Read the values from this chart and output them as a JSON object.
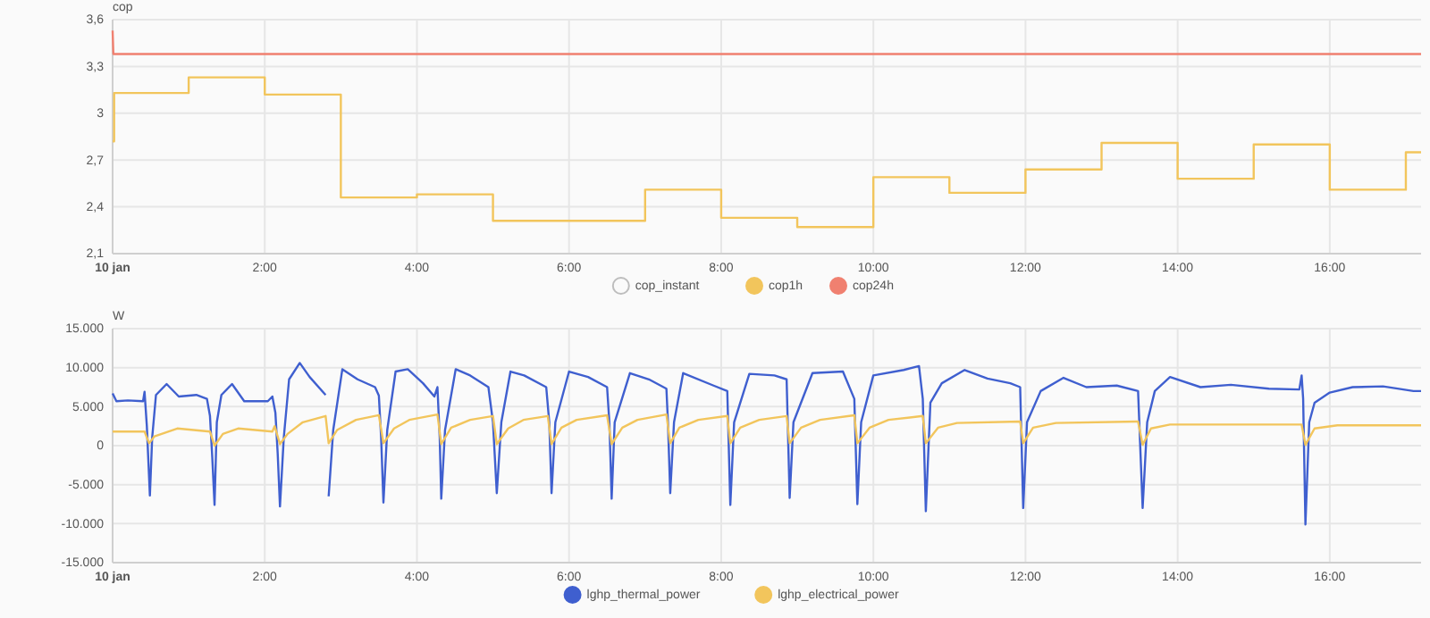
{
  "chart_data": [
    {
      "type": "step",
      "ylabel": "cop",
      "xlim": [
        0,
        17.2
      ],
      "ylim": [
        2.1,
        3.6
      ],
      "xticks": [
        {
          "value": 0,
          "label": "10 jan"
        },
        {
          "value": 2,
          "label": "2:00"
        },
        {
          "value": 4,
          "label": "4:00"
        },
        {
          "value": 6,
          "label": "6:00"
        },
        {
          "value": 8,
          "label": "8:00"
        },
        {
          "value": 10,
          "label": "10:00"
        },
        {
          "value": 12,
          "label": "12:00"
        },
        {
          "value": 14,
          "label": "14:00"
        },
        {
          "value": 16,
          "label": "16:00"
        }
      ],
      "yticks": [
        {
          "value": 2.1,
          "label": "2,1"
        },
        {
          "value": 2.4,
          "label": "2,4"
        },
        {
          "value": 2.7,
          "label": "2,7"
        },
        3,
        {
          "value": 3.3,
          "label": "3,3"
        },
        {
          "value": 3.6,
          "label": "3,6"
        }
      ],
      "grid": true,
      "legend": "bottom",
      "series": [
        {
          "name": "cop_instant",
          "color": "#bdbdbd"
        },
        {
          "name": "cop1h",
          "color": "#f2c55c",
          "x": [
            0,
            0.02,
            1,
            2,
            3,
            4,
            5,
            7,
            8,
            9,
            10,
            11,
            12,
            13,
            14,
            15,
            16,
            17,
            17.2
          ],
          "values": [
            2.82,
            3.13,
            3.23,
            3.12,
            2.46,
            2.48,
            2.31,
            2.51,
            2.33,
            2.27,
            2.59,
            2.49,
            2.64,
            2.81,
            2.58,
            2.8,
            2.51,
            2.75,
            2.75
          ]
        },
        {
          "name": "cop24h",
          "type": "line",
          "color": "#f08070",
          "x": [
            0,
            0.01,
            17.2
          ],
          "values": [
            3.53,
            3.38,
            3.38
          ]
        }
      ]
    },
    {
      "type": "line",
      "ylabel": "W",
      "xlim": [
        0,
        17.2
      ],
      "ylim": [
        -15000,
        15000
      ],
      "xticks": [
        {
          "value": 0,
          "label": "10 jan"
        },
        {
          "value": 2,
          "label": "2:00"
        },
        {
          "value": 4,
          "label": "4:00"
        },
        {
          "value": 6,
          "label": "6:00"
        },
        {
          "value": 8,
          "label": "8:00"
        },
        {
          "value": 10,
          "label": "10:00"
        },
        {
          "value": 12,
          "label": "12:00"
        },
        {
          "value": 14,
          "label": "14:00"
        },
        {
          "value": 16,
          "label": "16:00"
        }
      ],
      "yticks": [
        {
          "value": -15000,
          "label": "-15.000"
        },
        {
          "value": -10000,
          "label": "-10.000"
        },
        {
          "value": -5000,
          "label": "-5.000"
        },
        0,
        {
          "value": 5000,
          "label": "5.000"
        },
        {
          "value": 10000,
          "label": "10.000"
        },
        {
          "value": 15000,
          "label": "15.000"
        }
      ],
      "grid": true,
      "legend": "bottom",
      "series": [
        {
          "name": "lghp_thermal_power",
          "color": "#3f5fcf",
          "x": [
            0,
            0.05,
            0.2,
            0.4,
            0.42,
            0.45,
            0.49,
            0.52,
            0.57,
            0.71,
            0.87,
            1.1,
            1.24,
            1.28,
            1.31,
            1.34,
            1.37,
            1.43,
            1.57,
            1.73,
            2.04,
            2.1,
            2.14,
            2.17,
            2.2,
            2.25,
            2.32,
            2.46,
            2.59,
            2.8,
            2.81,
            2.84,
            2.9,
            3.02,
            3.22,
            3.45,
            3.5,
            3.53,
            3.56,
            3.61,
            3.72,
            3.88,
            4.08,
            4.23,
            4.27,
            4.3,
            4.32,
            4.37,
            4.51,
            4.7,
            4.94,
            5.0,
            5.05,
            5.11,
            5.23,
            5.41,
            5.7,
            5.74,
            5.77,
            5.82,
            6.0,
            6.25,
            6.5,
            6.53,
            6.56,
            6.6,
            6.8,
            7.05,
            7.28,
            7.3,
            7.33,
            7.38,
            7.5,
            7.9,
            8.08,
            8.12,
            8.17,
            8.37,
            8.7,
            8.86,
            8.9,
            8.95,
            9.2,
            9.6,
            9.75,
            9.79,
            9.84,
            10.0,
            10.4,
            10.6,
            10.65,
            10.69,
            10.75,
            10.9,
            11.2,
            11.5,
            11.8,
            11.93,
            11.97,
            12.02,
            12.2,
            12.5,
            12.8,
            13.2,
            13.48,
            13.54,
            13.6,
            13.7,
            13.9,
            14.3,
            14.7,
            15.2,
            15.6,
            15.63,
            15.65,
            15.68,
            15.73,
            15.8,
            16.0,
            16.3,
            16.7,
            17.1,
            17.2
          ],
          "values": [
            6700,
            5700,
            5800,
            5700,
            6900,
            2500,
            -6400,
            1000,
            6500,
            7900,
            6300,
            6500,
            6000,
            3800,
            -1500,
            -7600,
            3000,
            6500,
            7900,
            5700,
            5700,
            6300,
            4200,
            -1000,
            -7800,
            1000,
            8500,
            10600,
            8800,
            6500,
            null,
            -6500,
            2000,
            9800,
            8500,
            7500,
            6400,
            1000,
            -7300,
            2000,
            9500,
            9800,
            8000,
            6300,
            7500,
            1000,
            -6800,
            2000,
            9800,
            9000,
            7500,
            3000,
            -6100,
            3000,
            9500,
            9000,
            7500,
            3000,
            -6100,
            3000,
            9500,
            8800,
            7500,
            3000,
            -6800,
            3000,
            9300,
            8500,
            7300,
            3000,
            -6100,
            3000,
            9300,
            7700,
            7000,
            -7600,
            3000,
            9200,
            9000,
            8500,
            -6700,
            3000,
            9300,
            9500,
            6000,
            -7500,
            3000,
            9000,
            9700,
            10200,
            6000,
            -8400,
            5500,
            8000,
            9700,
            8600,
            8000,
            7500,
            -8000,
            3000,
            7000,
            8700,
            7500,
            7700,
            7000,
            -8000,
            3000,
            7000,
            8800,
            7500,
            7800,
            7300,
            7200,
            9000,
            6000,
            -10100,
            3000,
            5500,
            6800,
            7500,
            7600,
            7000,
            7000
          ]
        },
        {
          "name": "lghp_electrical_power",
          "color": "#f2c55c",
          "x": [
            0,
            0.42,
            0.48,
            0.55,
            0.85,
            1.28,
            1.34,
            1.45,
            1.65,
            2.1,
            2.13,
            2.2,
            2.3,
            2.5,
            2.8,
            2.84,
            2.95,
            3.2,
            3.5,
            3.56,
            3.7,
            3.9,
            4.27,
            4.32,
            4.45,
            4.7,
            5.0,
            5.05,
            5.2,
            5.4,
            5.72,
            5.77,
            5.9,
            6.1,
            6.5,
            6.56,
            6.7,
            6.9,
            7.28,
            7.33,
            7.45,
            7.7,
            8.08,
            8.12,
            8.25,
            8.5,
            8.86,
            8.9,
            9.05,
            9.3,
            9.75,
            9.79,
            9.95,
            10.2,
            10.65,
            10.69,
            10.85,
            11.1,
            11.93,
            11.97,
            12.1,
            12.4,
            13.48,
            13.54,
            13.65,
            13.9,
            15.63,
            15.68,
            15.8,
            16.1,
            17.2
          ],
          "values": [
            1800,
            1800,
            300,
            1200,
            2200,
            1800,
            0,
            1500,
            2200,
            1800,
            2500,
            200,
            1500,
            3000,
            3800,
            300,
            2000,
            3300,
            3900,
            300,
            2200,
            3300,
            4000,
            200,
            2300,
            3300,
            3800,
            200,
            2200,
            3300,
            3800,
            200,
            2300,
            3300,
            3900,
            200,
            2300,
            3300,
            4000,
            300,
            2300,
            3300,
            3800,
            300,
            2300,
            3300,
            3800,
            300,
            2300,
            3300,
            3900,
            300,
            2300,
            3300,
            3800,
            300,
            2300,
            2900,
            3100,
            300,
            2300,
            2900,
            3100,
            100,
            2200,
            2700,
            2700,
            100,
            2200,
            2600,
            2600
          ]
        }
      ]
    }
  ]
}
